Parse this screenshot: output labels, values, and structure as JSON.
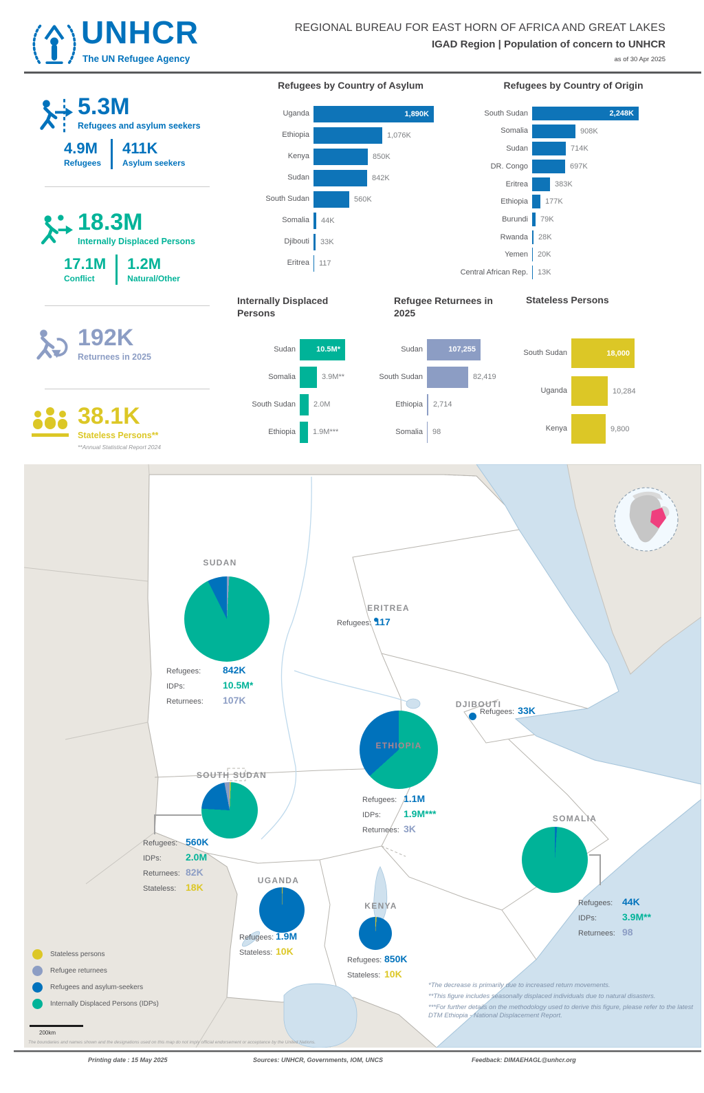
{
  "header": {
    "logo_text": "UNHCR",
    "logo_tagline": "The UN Refugee Agency",
    "title": "REGIONAL BUREAU FOR EAST HORN OF AFRICA AND GREAT LAKES",
    "subtitle": "IGAD Region | Population of concern to UNHCR",
    "date_label": "as of 30 Apr 2025"
  },
  "colors": {
    "blue": "#0072BC",
    "green": "#00B398",
    "slate": "#8C9DC4",
    "yellow": "#DCC726",
    "pink": "#EF3F7E"
  },
  "stats": {
    "refugees": {
      "value": "5.3M",
      "label": "Refugees and asylum seekers",
      "sub1_value": "4.9M",
      "sub1_label": "Refugees",
      "sub2_value": "411K",
      "sub2_label": "Asylum seekers"
    },
    "idps": {
      "value": "18.3M",
      "label": "Internally Displaced Persons",
      "sub1_value": "17.1M",
      "sub1_label": "Conflict",
      "sub2_value": "1.2M",
      "sub2_label": "Natural/Other"
    },
    "returnees": {
      "value": "192K",
      "label": "Returnees in 2025"
    },
    "stateless": {
      "value": "38.1K",
      "label": "Stateless Persons**",
      "footnote": "**Annual Statistical Report 2024"
    }
  },
  "chart_data": [
    {
      "type": "bar",
      "title": "Refugees by Country of Asylum",
      "unit": "thousands",
      "color": "#0E74B8",
      "categories": [
        "Uganda",
        "Ethiopia",
        "Kenya",
        "Sudan",
        "South Sudan",
        "Somalia",
        "Djibouti",
        "Eritrea"
      ],
      "values": [
        1890,
        1076,
        850,
        842,
        560,
        44,
        33,
        0.117
      ],
      "value_labels": [
        "1,890K",
        "1,076K",
        "850K",
        "842K",
        "560K",
        "44K",
        "33K",
        "117"
      ]
    },
    {
      "type": "bar",
      "title": "Refugees by Country of Origin",
      "unit": "thousands",
      "color": "#0E74B8",
      "categories": [
        "South Sudan",
        "Somalia",
        "Sudan",
        "DR. Congo",
        "Eritrea",
        "Ethiopia",
        "Burundi",
        "Rwanda",
        "Yemen",
        "Central African Rep."
      ],
      "values": [
        2248,
        908,
        714,
        697,
        383,
        177,
        79,
        28,
        20,
        13
      ],
      "value_labels": [
        "2,248K",
        "908K",
        "714K",
        "697K",
        "383K",
        "177K",
        "79K",
        "28K",
        "20K",
        "13K"
      ]
    },
    {
      "type": "bar",
      "title": "Internally Displaced Persons",
      "unit": "millions",
      "color": "#00B398",
      "categories": [
        "Sudan",
        "Somalia",
        "South Sudan",
        "Ethiopia"
      ],
      "values": [
        10.5,
        3.9,
        2.0,
        1.9
      ],
      "value_labels": [
        "10.5M*",
        "3.9M**",
        "2.0M",
        "1.9M***"
      ]
    },
    {
      "type": "bar",
      "title": "Refugee Returnees in 2025",
      "unit": "persons",
      "color": "#8C9DC4",
      "categories": [
        "Sudan",
        "South Sudan",
        "Ethiopia",
        "Somalia"
      ],
      "values": [
        107255,
        82419,
        2714,
        98
      ],
      "value_labels": [
        "107,255",
        "82,419",
        "2,714",
        "98"
      ]
    },
    {
      "type": "bar",
      "title": "Stateless Persons",
      "unit": "persons",
      "color": "#DCC726",
      "categories": [
        "South Sudan",
        "Uganda",
        "Kenya"
      ],
      "values": [
        18000,
        10284,
        9800
      ],
      "value_labels": [
        "18,000",
        "10,284",
        "9,800"
      ]
    }
  ],
  "map": {
    "countries": [
      {
        "id": "sudan",
        "name": "SUDAN",
        "stats": [
          [
            "Refugees:",
            "842K",
            "blue"
          ],
          [
            "IDPs:",
            "10.5M*",
            "green"
          ],
          [
            "Returnees:",
            "107K",
            "slate"
          ]
        ],
        "pie": [
          [
            "slate",
            0.9
          ],
          [
            "green",
            91.7
          ],
          [
            "blue",
            7.4
          ]
        ]
      },
      {
        "id": "eritrea",
        "name": "ERITREA",
        "stats": [
          [
            "Refugees:",
            "117",
            "blue"
          ]
        ],
        "dot": true
      },
      {
        "id": "djibouti",
        "name": "DJIBOUTI",
        "stats": [
          [
            "Refugees:",
            "33K",
            "blue"
          ]
        ],
        "dot": true
      },
      {
        "id": "ethiopia",
        "name": "ETHIOPIA",
        "stats": [
          [
            "Refugees:",
            "1.1M",
            "blue"
          ],
          [
            "IDPs:",
            "1.9M***",
            "green"
          ],
          [
            "Returnees:",
            "3K",
            "slate"
          ]
        ],
        "pie": [
          [
            "green",
            63.3
          ],
          [
            "blue",
            36.7
          ]
        ]
      },
      {
        "id": "south_sudan",
        "name": "SOUTH SUDAN",
        "stats": [
          [
            "Refugees:",
            "560K",
            "blue"
          ],
          [
            "IDPs:",
            "2.0M",
            "green"
          ],
          [
            "Returnees:",
            "82K",
            "slate"
          ],
          [
            "Stateless:",
            "18K",
            "yellow"
          ]
        ],
        "pie": [
          [
            "yellow",
            0.7
          ],
          [
            "green",
            75.2
          ],
          [
            "blue",
            21.1
          ],
          [
            "slate",
            3.0
          ]
        ]
      },
      {
        "id": "uganda",
        "name": "UGANDA",
        "stats": [
          [
            "Refugees:",
            "1.9M",
            "blue"
          ],
          [
            "Stateless:",
            "10K",
            "yellow"
          ]
        ],
        "pie": [
          [
            "yellow",
            0.5
          ],
          [
            "blue",
            99.5
          ]
        ]
      },
      {
        "id": "kenya",
        "name": "KENYA",
        "stats": [
          [
            "Refugees:",
            "850K",
            "blue"
          ],
          [
            "Stateless:",
            "10K",
            "yellow"
          ]
        ],
        "pie": [
          [
            "yellow",
            1.2
          ],
          [
            "blue",
            98.8
          ]
        ]
      },
      {
        "id": "somalia",
        "name": "SOMALIA",
        "stats": [
          [
            "Refugees:",
            "44K",
            "blue"
          ],
          [
            "IDPs:",
            "3.9M**",
            "green"
          ],
          [
            "Returnees:",
            "98",
            "slate"
          ]
        ],
        "pie": [
          [
            "blue",
            1.1
          ],
          [
            "green",
            98.9
          ]
        ]
      }
    ],
    "legend": {
      "items": [
        {
          "label": "Stateless persons",
          "c": "yellow"
        },
        {
          "label": "Refugee returnees",
          "c": "slate"
        },
        {
          "label": "Refugees and asylum-seekers",
          "c": "blue"
        },
        {
          "label": "Internally Displaced Persons (IDPs)",
          "c": "green"
        }
      ],
      "scale": "200km",
      "disclaimer": "The boundaries and names shown and the designations used on this map do not imply official endorsement or acceptance by the United Nations."
    },
    "footnotes": [
      "*The decrease is primarily due to increased return movements.",
      "**This figure includes seasonally displaced individuals due to natural disasters.",
      "***For further details on the methodology used to derive this figure, please refer to the latest DTM Ethiopia - National Displacement Report."
    ]
  },
  "footer": {
    "printing": "Printing date : 15 May 2025",
    "sources": "Sources: UNHCR, Governments, IOM, UNCS",
    "feedback": "Feedback: DIMAEHAGL@unhcr.org"
  }
}
